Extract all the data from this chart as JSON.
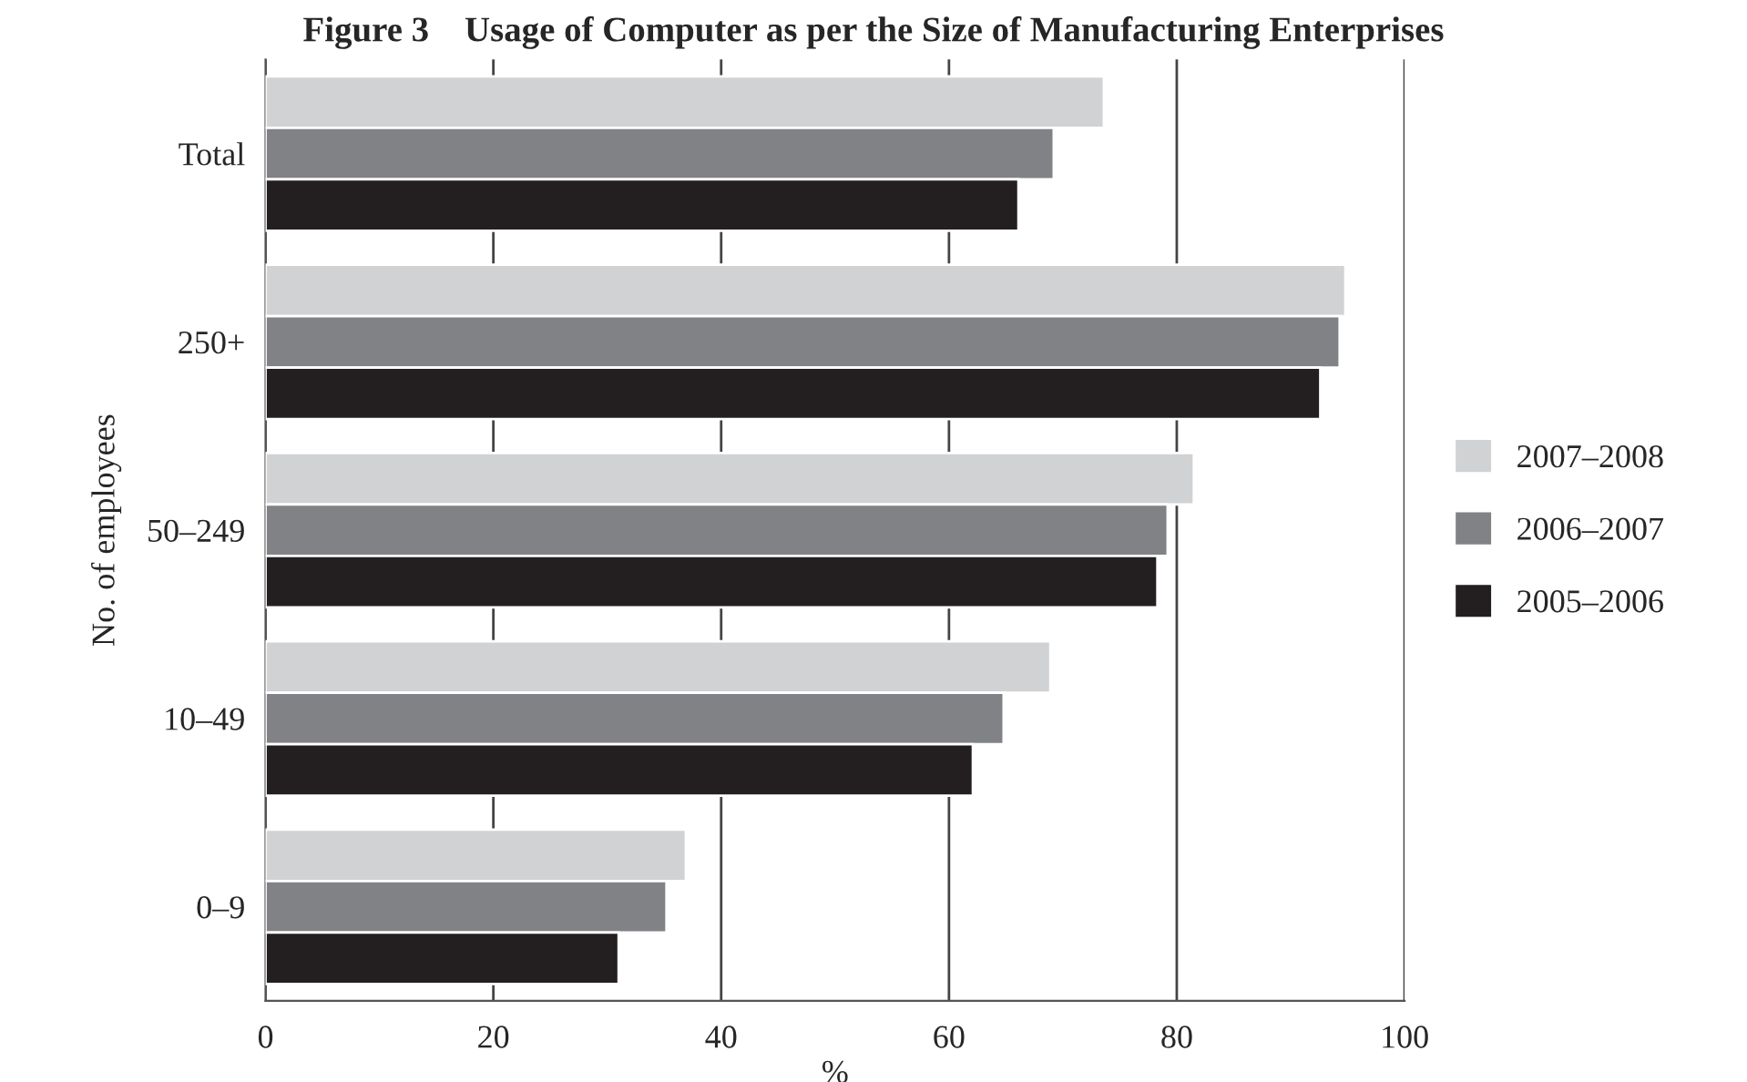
{
  "chart_data": {
    "type": "bar",
    "orientation": "horizontal",
    "title": "Figure 3    Usage of Computer as per the Size of Manufacturing Enterprises",
    "xlabel": "%",
    "ylabel": "No. of employees",
    "categories": [
      "Total",
      "250+",
      "50–249",
      "10–49",
      "0–9"
    ],
    "series": [
      {
        "name": "2007–2008",
        "color": "#d1d2d4",
        "values": [
          73.6,
          94.8,
          81.5,
          68.9,
          36.9
        ]
      },
      {
        "name": "2006–2007",
        "color": "#818285",
        "values": [
          69.2,
          94.3,
          79.2,
          64.8,
          35.2
        ]
      },
      {
        "name": "2005–2006",
        "color": "#231f20",
        "values": [
          66.1,
          92.6,
          78.3,
          62.1,
          31.0
        ]
      }
    ],
    "xlim": [
      0,
      100
    ],
    "xticks": [
      0,
      20,
      40,
      60,
      80,
      100
    ],
    "grid": "x",
    "legend": "right"
  }
}
